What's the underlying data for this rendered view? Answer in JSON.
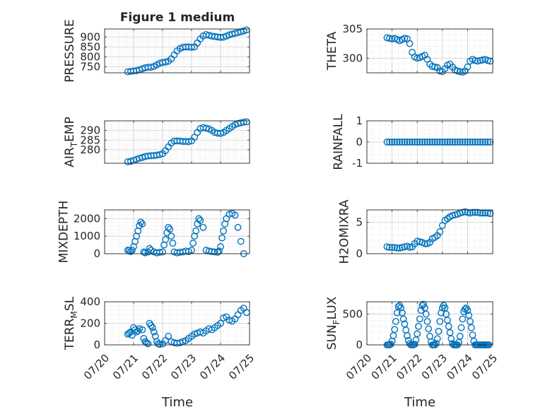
{
  "figure": {
    "title": "Figure 1 medium",
    "xlabel": "Time",
    "xticks": [
      "07/20",
      "07/21",
      "07/22",
      "07/23",
      "07/24",
      "07/25"
    ],
    "marker_color": "#0072BD"
  },
  "chart_data": [
    {
      "type": "scatter",
      "ylabel_main": "PRESSURE",
      "ylabel_sub": "",
      "ylim": [
        720,
        940
      ],
      "yticks": [
        750,
        800,
        850,
        900
      ],
      "x": [
        0.8,
        0.9,
        1.0,
        1.1,
        1.2,
        1.3,
        1.4,
        1.5,
        1.6,
        1.7,
        1.8,
        1.9,
        2.0,
        2.1,
        2.2,
        2.3,
        2.4,
        2.5,
        2.6,
        2.7,
        2.8,
        2.9,
        3.0,
        3.1,
        3.2,
        3.3,
        3.4,
        3.5,
        3.6,
        3.7,
        3.8,
        3.9,
        4.0,
        4.1,
        4.2,
        4.3,
        4.4,
        4.5,
        4.6,
        4.7,
        4.8,
        4.9
      ],
      "y": [
        725,
        727,
        729,
        731,
        735,
        740,
        745,
        748,
        748,
        752,
        760,
        768,
        772,
        774,
        778,
        790,
        810,
        830,
        842,
        848,
        850,
        850,
        848,
        850,
        870,
        890,
        905,
        912,
        908,
        904,
        902,
        900,
        898,
        899,
        904,
        910,
        915,
        918,
        922,
        926,
        930,
        935
      ]
    },
    {
      "type": "scatter",
      "ylabel_main": "THETA",
      "ylabel_sub": "",
      "ylim": [
        297.5,
        305
      ],
      "yticks": [
        300,
        305
      ],
      "x": [
        0.8,
        0.9,
        1.0,
        1.1,
        1.2,
        1.3,
        1.4,
        1.5,
        1.6,
        1.7,
        1.8,
        1.9,
        2.0,
        2.1,
        2.2,
        2.3,
        2.4,
        2.5,
        2.6,
        2.7,
        2.8,
        2.9,
        3.0,
        3.1,
        3.2,
        3.3,
        3.4,
        3.5,
        3.6,
        3.7,
        3.8,
        3.9,
        4.0,
        4.1,
        4.2,
        4.3,
        4.4,
        4.5,
        4.6,
        4.7,
        4.8,
        4.9
      ],
      "y": [
        303.5,
        303.4,
        303.3,
        303.4,
        303.2,
        303.0,
        303.2,
        303.4,
        303.3,
        302.5,
        301.0,
        300.2,
        300.0,
        300.1,
        300.3,
        300.5,
        299.8,
        299.0,
        298.6,
        298.5,
        298.4,
        297.8,
        297.7,
        298.2,
        298.8,
        299.0,
        298.5,
        298.0,
        297.8,
        297.7,
        297.6,
        297.8,
        298.5,
        299.5,
        299.8,
        299.6,
        299.5,
        299.6,
        299.7,
        299.8,
        299.6,
        299.5
      ]
    },
    {
      "type": "scatter",
      "ylabel_main": "AIR",
      "ylabel_sub": "T",
      "ylabel_rest": "EMP",
      "ylim": [
        273,
        295
      ],
      "yticks": [
        280,
        285,
        290
      ],
      "x": [
        0.8,
        0.9,
        1.0,
        1.1,
        1.2,
        1.3,
        1.4,
        1.5,
        1.6,
        1.7,
        1.8,
        1.9,
        2.0,
        2.1,
        2.2,
        2.3,
        2.4,
        2.5,
        2.6,
        2.7,
        2.8,
        2.9,
        3.0,
        3.1,
        3.2,
        3.3,
        3.4,
        3.5,
        3.6,
        3.7,
        3.8,
        3.9,
        4.0,
        4.1,
        4.2,
        4.3,
        4.4,
        4.5,
        4.6,
        4.7,
        4.8,
        4.9
      ],
      "y": [
        273.8,
        274.0,
        274.5,
        275.0,
        275.6,
        276.0,
        276.5,
        276.8,
        276.9,
        277.0,
        277.2,
        277.5,
        278.0,
        279.5,
        281.5,
        283.5,
        284.5,
        284.6,
        284.5,
        284.3,
        284.3,
        284.2,
        284.6,
        286.5,
        289.0,
        291.0,
        291.5,
        291.2,
        290.8,
        290.0,
        289.0,
        288.6,
        288.5,
        289.0,
        290.0,
        291.0,
        292.0,
        293.0,
        293.6,
        294.0,
        294.3,
        294.5
      ]
    },
    {
      "type": "scatter",
      "ylabel_main": "RAINFALL",
      "ylabel_sub": "",
      "ylim": [
        -1,
        1
      ],
      "yticks": [
        -1,
        0,
        1
      ],
      "x": [
        0.8,
        0.9,
        1.0,
        1.1,
        1.2,
        1.3,
        1.4,
        1.5,
        1.6,
        1.7,
        1.8,
        1.9,
        2.0,
        2.1,
        2.2,
        2.3,
        2.4,
        2.5,
        2.6,
        2.7,
        2.8,
        2.9,
        3.0,
        3.1,
        3.2,
        3.3,
        3.4,
        3.5,
        3.6,
        3.7,
        3.8,
        3.9,
        4.0,
        4.1,
        4.2,
        4.3,
        4.4,
        4.5,
        4.6,
        4.7,
        4.8,
        4.9
      ],
      "y": [
        0,
        0,
        0,
        0,
        0,
        0,
        0,
        0,
        0,
        0,
        0,
        0,
        0,
        0,
        0,
        0,
        0,
        0,
        0,
        0,
        0,
        0,
        0,
        0,
        0,
        0,
        0,
        0,
        0,
        0,
        0,
        0,
        0,
        0,
        0,
        0,
        0,
        0,
        0,
        0,
        0,
        0
      ]
    },
    {
      "type": "scatter",
      "ylabel_main": "MIXDEPTH",
      "ylabel_sub": "",
      "ylim": [
        0,
        2500
      ],
      "yticks": [
        0,
        1000,
        2000
      ],
      "x": [
        0.8,
        0.85,
        0.9,
        0.95,
        1.0,
        1.05,
        1.1,
        1.15,
        1.2,
        1.25,
        1.3,
        1.35,
        1.4,
        1.5,
        1.55,
        1.6,
        1.7,
        1.8,
        1.9,
        2.0,
        2.05,
        2.1,
        2.15,
        2.2,
        2.25,
        2.3,
        2.35,
        2.4,
        2.5,
        2.6,
        2.7,
        2.8,
        2.9,
        3.0,
        3.05,
        3.1,
        3.15,
        3.2,
        3.25,
        3.3,
        3.4,
        3.5,
        3.6,
        3.7,
        3.8,
        3.9,
        3.95,
        4.0,
        4.05,
        4.1,
        4.15,
        4.2,
        4.3,
        4.4,
        4.5,
        4.6,
        4.7,
        4.8
      ],
      "y": [
        200,
        180,
        120,
        200,
        400,
        700,
        1000,
        1300,
        1600,
        1800,
        1700,
        100,
        50,
        100,
        300,
        200,
        100,
        50,
        80,
        100,
        500,
        800,
        1200,
        1500,
        1400,
        1000,
        600,
        100,
        50,
        80,
        100,
        150,
        120,
        200,
        600,
        1000,
        1300,
        1700,
        2000,
        1900,
        1500,
        200,
        150,
        120,
        100,
        80,
        150,
        400,
        900,
        1300,
        1700,
        2000,
        2250,
        2300,
        2200,
        1500,
        700,
        0
      ]
    },
    {
      "type": "scatter",
      "ylabel_main": "H2OMIXRA",
      "ylabel_sub": "",
      "ylim": [
        0,
        7
      ],
      "yticks": [
        0,
        5
      ],
      "x": [
        0.8,
        0.9,
        1.0,
        1.1,
        1.2,
        1.3,
        1.4,
        1.5,
        1.6,
        1.7,
        1.8,
        1.9,
        2.0,
        2.1,
        2.2,
        2.3,
        2.4,
        2.5,
        2.6,
        2.7,
        2.8,
        2.9,
        3.0,
        3.1,
        3.2,
        3.3,
        3.4,
        3.5,
        3.6,
        3.7,
        3.8,
        3.9,
        4.0,
        4.1,
        4.2,
        4.3,
        4.4,
        4.5,
        4.6,
        4.7,
        4.8,
        4.9
      ],
      "y": [
        1.1,
        1.0,
        1.0,
        1.0,
        0.9,
        0.9,
        1.0,
        1.1,
        1.2,
        1.0,
        1.1,
        1.6,
        2.0,
        1.9,
        1.8,
        1.6,
        1.6,
        1.8,
        2.4,
        2.6,
        2.9,
        3.5,
        4.5,
        5.3,
        5.6,
        5.9,
        6.1,
        6.2,
        6.3,
        6.5,
        6.6,
        6.7,
        6.6,
        6.5,
        6.6,
        6.6,
        6.6,
        6.5,
        6.5,
        6.5,
        6.5,
        6.4
      ]
    },
    {
      "type": "scatter",
      "ylabel_main": "TERR",
      "ylabel_sub": "M",
      "ylabel_rest": "SL",
      "ylim": [
        0,
        400
      ],
      "yticks": [
        0,
        200,
        400
      ],
      "x": [
        0.8,
        0.85,
        0.9,
        0.95,
        1.0,
        1.05,
        1.1,
        1.15,
        1.2,
        1.3,
        1.35,
        1.4,
        1.45,
        1.5,
        1.55,
        1.6,
        1.65,
        1.7,
        1.75,
        1.8,
        1.85,
        1.9,
        2.0,
        2.1,
        2.2,
        2.3,
        2.4,
        2.5,
        2.6,
        2.7,
        2.8,
        2.9,
        3.0,
        3.1,
        3.2,
        3.3,
        3.4,
        3.5,
        3.6,
        3.7,
        3.8,
        3.9,
        4.0,
        4.1,
        4.2,
        4.3,
        4.4,
        4.5,
        4.6,
        4.7,
        4.8,
        4.9
      ],
      "y": [
        100,
        110,
        120,
        90,
        160,
        140,
        120,
        130,
        150,
        140,
        60,
        30,
        20,
        10,
        200,
        180,
        160,
        120,
        80,
        30,
        10,
        5,
        10,
        40,
        80,
        30,
        20,
        15,
        20,
        30,
        40,
        60,
        80,
        100,
        110,
        120,
        110,
        130,
        150,
        140,
        160,
        180,
        200,
        250,
        260,
        230,
        220,
        240,
        280,
        320,
        340,
        300
      ]
    },
    {
      "type": "scatter",
      "ylabel_main": "SUN",
      "ylabel_sub": "F",
      "ylabel_rest": "LUX",
      "ylim": [
        0,
        700
      ],
      "yticks": [
        0,
        500
      ],
      "x": [
        0.8,
        0.85,
        0.9,
        0.95,
        1.0,
        1.05,
        1.1,
        1.15,
        1.2,
        1.25,
        1.3,
        1.35,
        1.4,
        1.45,
        1.5,
        1.55,
        1.6,
        1.65,
        1.7,
        1.75,
        1.8,
        1.85,
        1.9,
        1.95,
        2.0,
        2.05,
        2.1,
        2.15,
        2.2,
        2.25,
        2.3,
        2.35,
        2.4,
        2.45,
        2.5,
        2.55,
        2.6,
        2.65,
        2.7,
        2.75,
        2.8,
        2.85,
        2.9,
        2.95,
        3.0,
        3.05,
        3.1,
        3.15,
        3.2,
        3.25,
        3.3,
        3.35,
        3.4,
        3.45,
        3.5,
        3.55,
        3.6,
        3.65,
        3.7,
        3.75,
        3.8,
        3.85,
        3.9,
        3.95,
        4.0,
        4.05,
        4.1,
        4.15,
        4.2,
        4.25,
        4.3,
        4.35,
        4.4,
        4.45,
        4.5,
        4.55,
        4.6,
        4.65,
        4.7,
        4.75,
        4.8,
        4.85
      ],
      "y": [
        0,
        0,
        0,
        10,
        60,
        150,
        250,
        380,
        520,
        620,
        640,
        600,
        520,
        420,
        340,
        240,
        150,
        70,
        20,
        0,
        0,
        0,
        10,
        80,
        180,
        300,
        420,
        560,
        640,
        660,
        600,
        500,
        380,
        260,
        140,
        50,
        0,
        0,
        0,
        20,
        100,
        220,
        380,
        520,
        600,
        640,
        600,
        500,
        400,
        300,
        200,
        100,
        20,
        0,
        0,
        0,
        0,
        40,
        140,
        280,
        420,
        540,
        580,
        600,
        560,
        480,
        380,
        280,
        160,
        60,
        0,
        0,
        0,
        0,
        0,
        0,
        0,
        0,
        0,
        0,
        0,
        0
      ]
    }
  ]
}
